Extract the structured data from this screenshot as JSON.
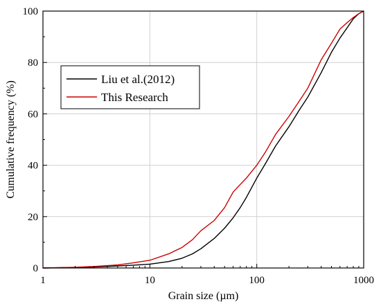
{
  "chart_data": {
    "type": "line",
    "title": "",
    "xlabel": "Grain size (µm)",
    "ylabel": "Cumulative frequency (%)",
    "xscale": "log",
    "xlim": [
      1,
      1000
    ],
    "ylim": [
      0,
      100
    ],
    "xticks": [
      1,
      10,
      100,
      1000
    ],
    "xtick_labels": [
      "1",
      "10",
      "100",
      "1000"
    ],
    "yticks": [
      0,
      20,
      40,
      60,
      80,
      100
    ],
    "ytick_labels": [
      "0",
      "20",
      "40",
      "60",
      "80",
      "100"
    ],
    "grid": true,
    "legend_position": "center-left",
    "series": [
      {
        "name": "Liu et al.(2012)",
        "color": "#000000",
        "x": [
          1,
          2,
          3,
          5,
          7,
          10,
          15,
          20,
          25,
          30,
          40,
          50,
          60,
          70,
          80,
          100,
          120,
          150,
          200,
          250,
          300,
          400,
          500,
          600,
          700,
          800,
          900,
          1000
        ],
        "y": [
          0,
          0.2,
          0.4,
          0.8,
          1.1,
          1.5,
          2.5,
          3.8,
          5.5,
          7.5,
          11.5,
          15.5,
          19.5,
          23.5,
          27.5,
          35,
          40.5,
          47.5,
          55,
          61.5,
          66.5,
          76,
          84,
          89.5,
          93.5,
          97,
          99,
          100
        ]
      },
      {
        "name": "This Research",
        "color": "#cc0000",
        "x": [
          1,
          2,
          3,
          5,
          7,
          10,
          15,
          20,
          25,
          30,
          40,
          50,
          60,
          70,
          80,
          100,
          120,
          150,
          200,
          250,
          300,
          400,
          500,
          600,
          700,
          800,
          900,
          1000
        ],
        "y": [
          0,
          0.3,
          0.6,
          1.2,
          2,
          3,
          5.5,
          8,
          11,
          14.5,
          18.5,
          23.5,
          29.5,
          32.5,
          35,
          40,
          45,
          52,
          59,
          65,
          70,
          81,
          87.5,
          93,
          95.5,
          97.5,
          99,
          100
        ]
      }
    ]
  }
}
